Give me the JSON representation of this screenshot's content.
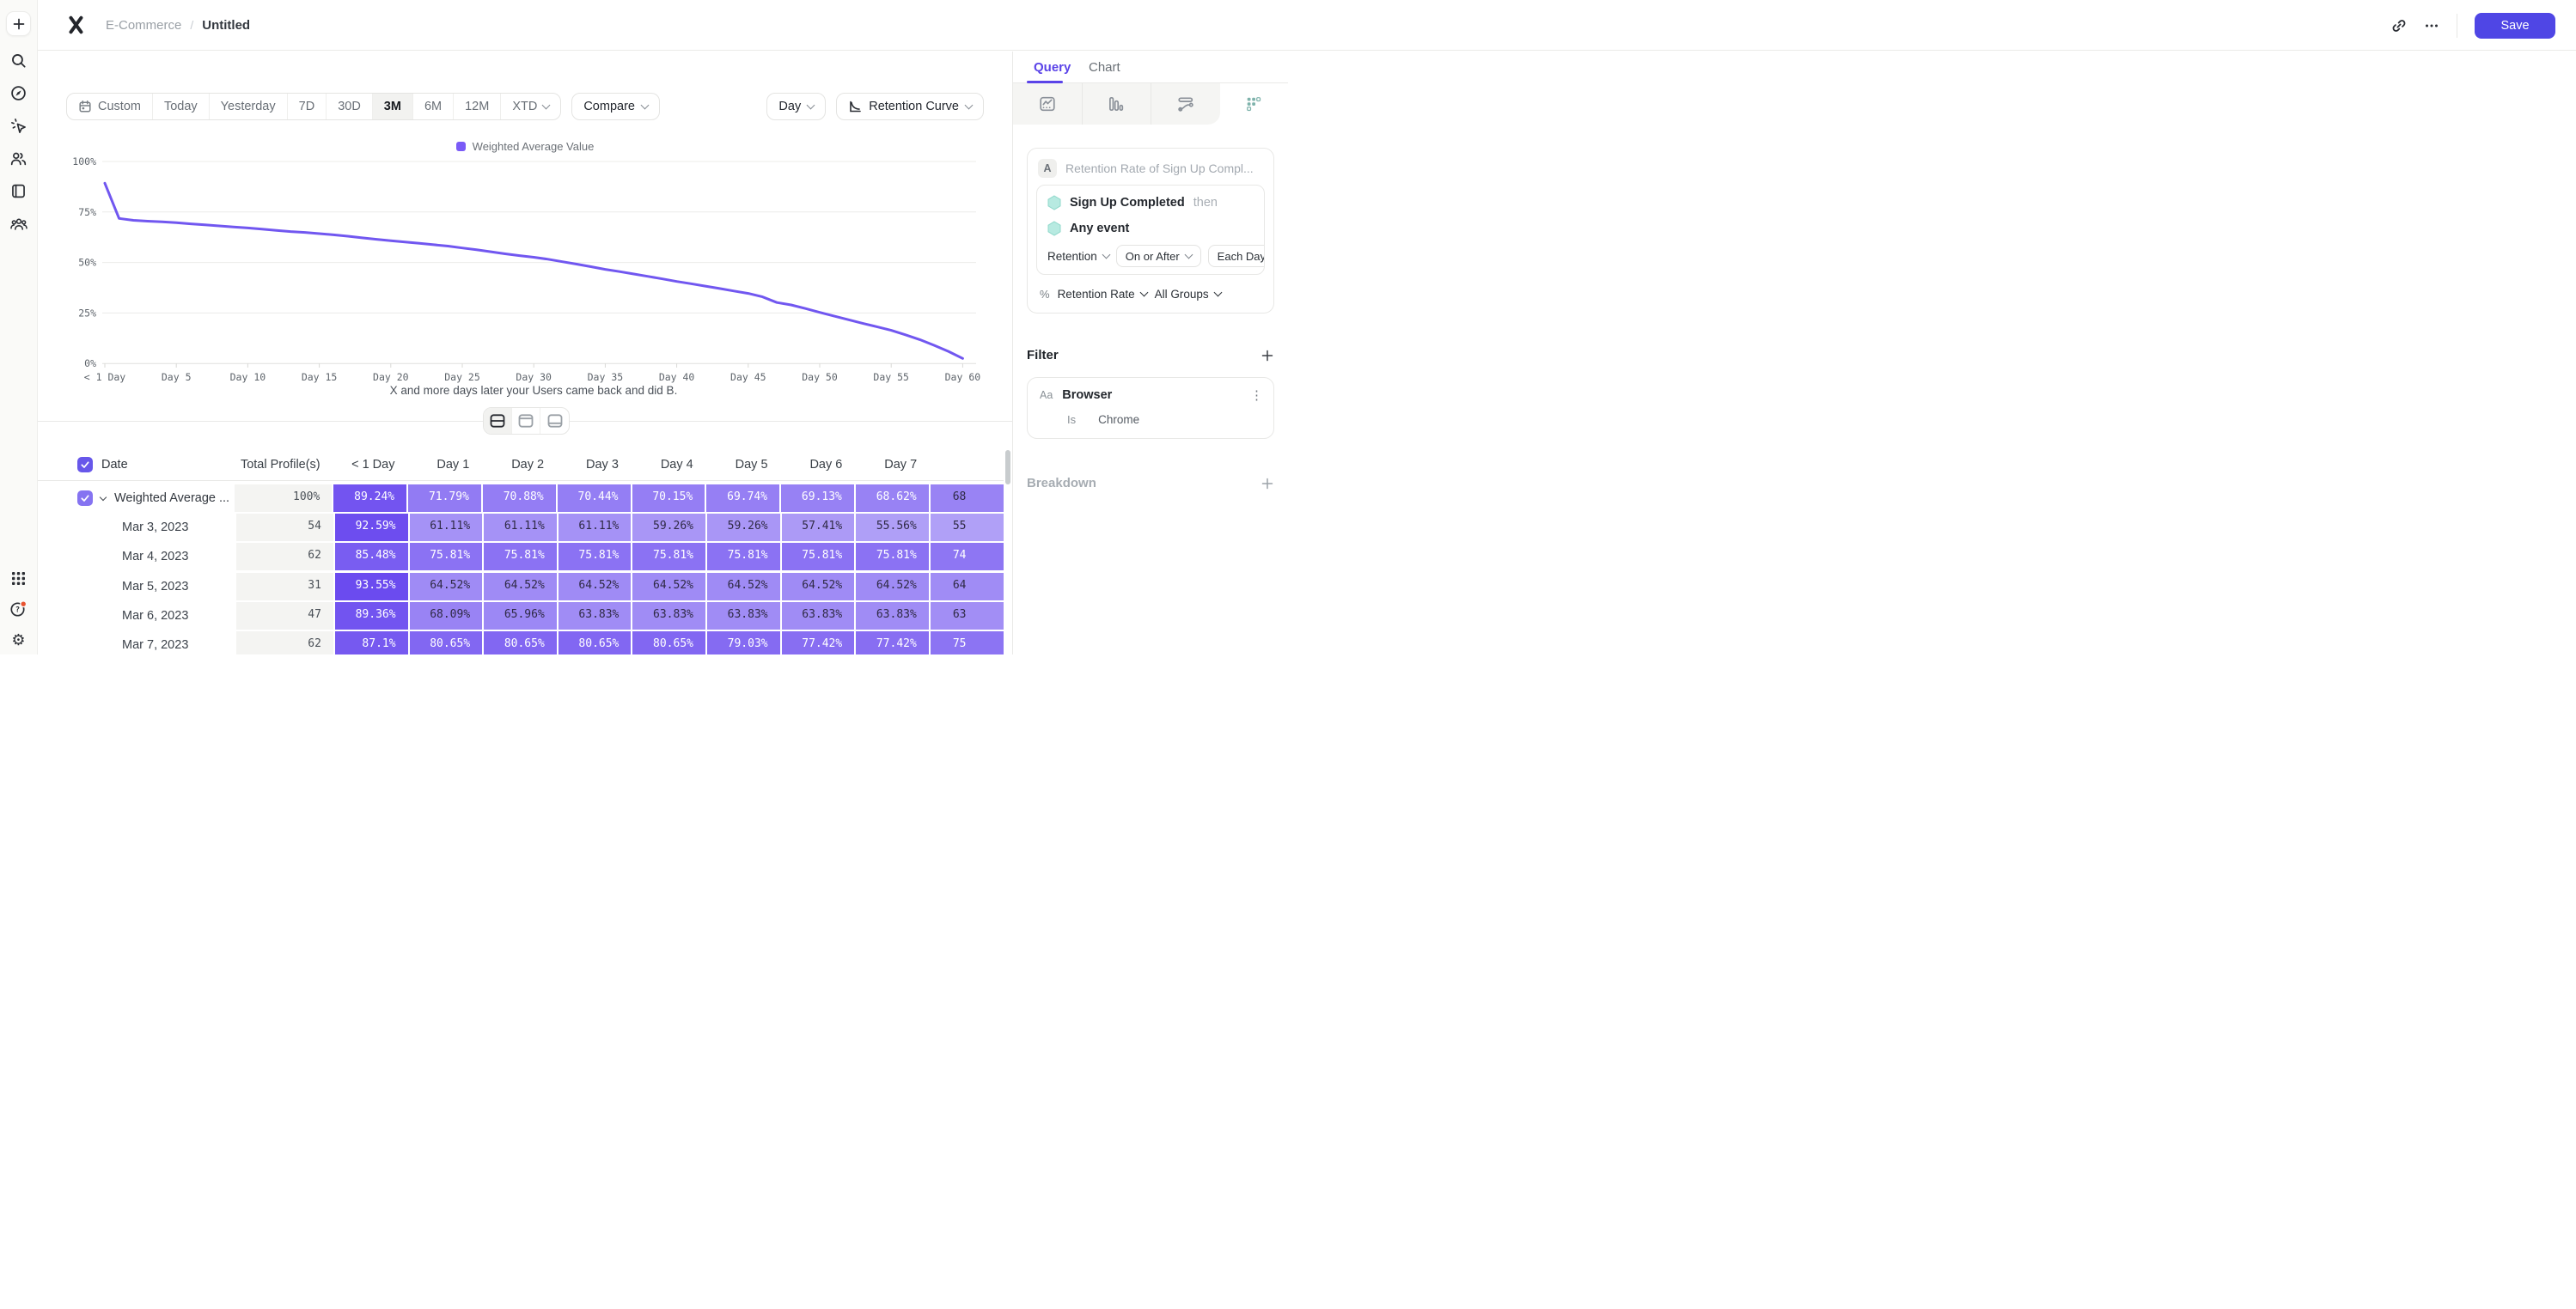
{
  "colors": {
    "accent": "#4F46E5",
    "chart_line": "#7157F0",
    "legend_swatch": "#7A5BF7",
    "cell_dark": "#6A4AEF",
    "cell_light": "#B2A2F7",
    "cell_text_dark": "#2F2A45",
    "header_checkbox": "#6757EA",
    "row_checkbox": "#8573F1",
    "teal_fill": "#B7EAE1",
    "teal_stroke": "#90D8CB",
    "notification_dot": "#E8522F"
  },
  "header": {
    "breadcrumb": [
      "E-Commerce",
      "Untitled"
    ],
    "save_label": "Save"
  },
  "toolbar": {
    "date_ranges": [
      "Custom",
      "Today",
      "Yesterday",
      "7D",
      "30D",
      "3M",
      "6M",
      "12M",
      "XTD"
    ],
    "active_range": "3M",
    "compare_label": "Compare",
    "granularity_label": "Day",
    "chart_type_label": "Retention Curve"
  },
  "chart_data": {
    "type": "line",
    "legend": [
      "Weighted Average Value"
    ],
    "legend_position": "top",
    "x_axis_caption": "X and more days later your Users came back and did B.",
    "x_tick_labels": [
      "< 1 Day",
      "Day 5",
      "Day 10",
      "Day 15",
      "Day 20",
      "Day 25",
      "Day 30",
      "Day 35",
      "Day 40",
      "Day 45",
      "Day 50",
      "Day 55",
      "Day 60"
    ],
    "y_tick_labels": [
      "100%",
      "75%",
      "50%",
      "25%",
      "0%"
    ],
    "ylim": [
      0,
      100
    ],
    "grid": "horizontal",
    "series": [
      {
        "name": "Weighted Average Value",
        "x_days": [
          0,
          1,
          2,
          3,
          4,
          5,
          6,
          7,
          8,
          9,
          10,
          11,
          12,
          13,
          14,
          15,
          16,
          17,
          18,
          19,
          20,
          21,
          22,
          23,
          24,
          25,
          26,
          27,
          28,
          29,
          30,
          31,
          32,
          33,
          34,
          35,
          36,
          37,
          38,
          39,
          40,
          41,
          42,
          43,
          44,
          45,
          46,
          47,
          48,
          49,
          50,
          51,
          52,
          53,
          54,
          55,
          56,
          57,
          58,
          59,
          60
        ],
        "values": [
          89.24,
          71.79,
          70.88,
          70.44,
          70.15,
          69.74,
          69.13,
          68.62,
          68.1,
          67.6,
          67.1,
          66.5,
          65.9,
          65.3,
          64.9,
          64.3,
          63.7,
          63.0,
          62.2,
          61.5,
          60.8,
          60.1,
          59.5,
          58.8,
          58.1,
          57.2,
          56.3,
          55.3,
          54.3,
          53.4,
          52.6,
          51.6,
          50.4,
          49.2,
          47.9,
          46.6,
          45.5,
          44.3,
          43.1,
          41.9,
          40.6,
          39.5,
          38.3,
          37.1,
          35.9,
          34.7,
          33.0,
          30.2,
          29.0,
          27.2,
          25.3,
          23.5,
          21.7,
          19.9,
          18.2,
          16.4,
          14.2,
          11.8,
          9.0,
          6.0,
          2.5
        ]
      }
    ]
  },
  "layout_toggles": {
    "options": [
      "split-view",
      "table-top",
      "table-bottom"
    ],
    "active": "split-view"
  },
  "table": {
    "headers": [
      "Date",
      "Total Profile(s)",
      "< 1 Day",
      "Day 1",
      "Day 2",
      "Day 3",
      "Day 4",
      "Day 5",
      "Day 6",
      "Day 7"
    ],
    "rows": [
      {
        "label": "Weighted Average ...",
        "checked": true,
        "expandable": true,
        "total": "100%",
        "cells": [
          "89.24%",
          "71.79%",
          "70.88%",
          "70.44%",
          "70.15%",
          "69.74%",
          "69.13%",
          "68.62%",
          "68"
        ]
      },
      {
        "label": "Mar 3, 2023",
        "total": "54",
        "cells": [
          "92.59%",
          "61.11%",
          "61.11%",
          "61.11%",
          "59.26%",
          "59.26%",
          "57.41%",
          "55.56%",
          "55"
        ]
      },
      {
        "label": "Mar 4, 2023",
        "total": "62",
        "cells": [
          "85.48%",
          "75.81%",
          "75.81%",
          "75.81%",
          "75.81%",
          "75.81%",
          "75.81%",
          "75.81%",
          "74"
        ]
      },
      {
        "label": "Mar 5, 2023",
        "total": "31",
        "cells": [
          "93.55%",
          "64.52%",
          "64.52%",
          "64.52%",
          "64.52%",
          "64.52%",
          "64.52%",
          "64.52%",
          "64"
        ]
      },
      {
        "label": "Mar 6, 2023",
        "total": "47",
        "cells": [
          "89.36%",
          "68.09%",
          "65.96%",
          "63.83%",
          "63.83%",
          "63.83%",
          "63.83%",
          "63.83%",
          "63"
        ]
      },
      {
        "label": "Mar 7, 2023",
        "total": "62",
        "cells": [
          "87.1%",
          "80.65%",
          "80.65%",
          "80.65%",
          "80.65%",
          "79.03%",
          "77.42%",
          "77.42%",
          "75"
        ]
      }
    ]
  },
  "panel": {
    "tabs": [
      "Query",
      "Chart"
    ],
    "active_tab": "Query",
    "query": {
      "block_label": "A",
      "block_title": "Retention Rate of Sign Up Compl...",
      "event_a": "Sign Up Completed",
      "event_a_suffix": "then",
      "event_b": "Any event",
      "retention_dropdown": "Retention",
      "condition_dropdown": "On or After",
      "granularity_dropdown": "Each Day",
      "metric_prefix": "%",
      "metric_dropdown": "Retention Rate",
      "groups_dropdown": "All Groups"
    },
    "filter": {
      "heading": "Filter",
      "property_type": "Aa",
      "property": "Browser",
      "operator": "Is",
      "value": "Chrome"
    },
    "breakdown": {
      "heading": "Breakdown"
    }
  }
}
